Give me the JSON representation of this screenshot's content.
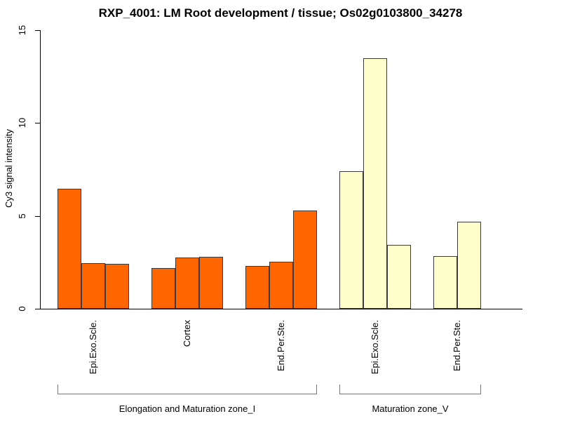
{
  "chart_data": {
    "type": "bar",
    "title": "RXP_4001: LM Root development / tissue; Os02g0103800_34278",
    "ylabel": "Cy3 signal intensity",
    "xlabel": "",
    "ylim": [
      0,
      15
    ],
    "yticks": [
      0,
      5,
      10,
      15
    ],
    "grid": false,
    "legend": "none",
    "bar_border_color": "#3b3b3b",
    "axis_color": "#000000",
    "bracket_color": "#777777",
    "zones": [
      {
        "label": "Elongation and Maturation zone_I",
        "color": "#FF6600"
      },
      {
        "label": "Maturation zone_V",
        "color": "#FFFFCC"
      }
    ],
    "groups": [
      {
        "tissue": "Epi.Exo.Scle.",
        "zone_index": 0,
        "values": [
          6.45,
          2.45,
          2.4
        ]
      },
      {
        "tissue": "Cortex",
        "zone_index": 0,
        "values": [
          2.2,
          2.75,
          2.8
        ]
      },
      {
        "tissue": "End.Per.Ste.",
        "zone_index": 0,
        "values": [
          2.3,
          2.55,
          5.3
        ]
      },
      {
        "tissue": "Epi.Exo.Scle.",
        "zone_index": 1,
        "values": [
          7.4,
          13.5,
          3.45
        ]
      },
      {
        "tissue": "End.Per.Ste.",
        "zone_index": 1,
        "values": [
          2.85,
          4.7
        ]
      }
    ]
  }
}
